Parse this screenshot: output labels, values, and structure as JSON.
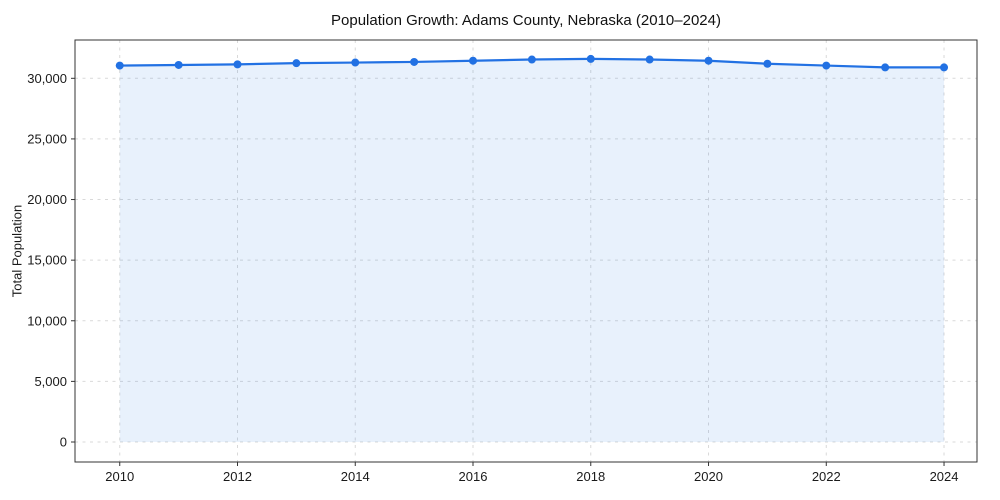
{
  "chart_data": {
    "type": "line",
    "title": "Population Growth: Adams County, Nebraska (2010–2024)",
    "xlabel": "",
    "ylabel": "Total Population",
    "x": [
      2010,
      2011,
      2012,
      2013,
      2014,
      2015,
      2016,
      2017,
      2018,
      2019,
      2020,
      2021,
      2022,
      2023,
      2024
    ],
    "values": [
      31050,
      31100,
      31150,
      31250,
      31300,
      31350,
      31450,
      31550,
      31600,
      31550,
      31450,
      31200,
      31050,
      30900,
      30900
    ],
    "x_ticks": [
      2010,
      2012,
      2014,
      2016,
      2018,
      2020,
      2022,
      2024
    ],
    "y_ticks": [
      0,
      5000,
      10000,
      15000,
      20000,
      25000,
      30000
    ],
    "xlim": [
      2009.24,
      2024.56
    ],
    "ylim": [
      -1650,
      33160
    ],
    "grid": true,
    "grid_style": "dashed",
    "legend": "none",
    "area_fill": true,
    "marker": "circle",
    "colors": {
      "line": "#2271e3",
      "marker": "#2271e3",
      "fill": "rgba(34, 113, 227, 0.10)",
      "grid": "#d9d9d9",
      "spine": "#333333",
      "tick_text": "#1a1a1a",
      "title_text": "#111111",
      "background": "#ffffff"
    }
  }
}
